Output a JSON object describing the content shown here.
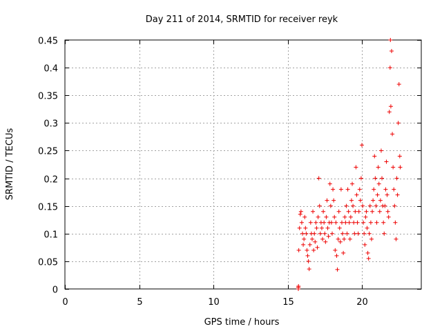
{
  "chart_data": {
    "type": "scatter",
    "title": "Day 211 of 2014, SRMTID for receiver reyk",
    "xlabel": "GPS time / hours",
    "ylabel": "SRMTID / TECUs",
    "xlim": [
      0,
      24
    ],
    "ylim": [
      0,
      0.45
    ],
    "x_ticks": [
      0,
      5,
      10,
      15,
      20
    ],
    "x_tick_labels": [
      "0",
      "5",
      "10",
      "15",
      "20"
    ],
    "y_ticks": [
      0,
      0.05,
      0.1,
      0.15,
      0.2,
      0.25,
      0.3,
      0.35,
      0.4,
      0.45
    ],
    "y_tick_labels": [
      "0",
      "0.05",
      "0.1",
      "0.15",
      "0.2",
      "0.25",
      "0.3",
      "0.35",
      "0.4",
      "0.45"
    ],
    "grid": true,
    "marker": "plus",
    "series": [
      {
        "name": "SRMTID",
        "color": "#ee0000",
        "points": [
          [
            15.72,
            0.0
          ],
          [
            15.72,
            0.003
          ],
          [
            15.73,
            0.005
          ],
          [
            15.75,
            0.07
          ],
          [
            15.8,
            0.11
          ],
          [
            15.85,
            0.135
          ],
          [
            15.9,
            0.14
          ],
          [
            15.95,
            0.12
          ],
          [
            16.0,
            0.1
          ],
          [
            16.05,
            0.08
          ],
          [
            16.1,
            0.09
          ],
          [
            16.15,
            0.13
          ],
          [
            16.2,
            0.11
          ],
          [
            16.25,
            0.1
          ],
          [
            16.3,
            0.07
          ],
          [
            16.35,
            0.06
          ],
          [
            16.4,
            0.05
          ],
          [
            16.45,
            0.036
          ],
          [
            16.5,
            0.08
          ],
          [
            16.55,
            0.12
          ],
          [
            16.6,
            0.1
          ],
          [
            16.65,
            0.09
          ],
          [
            16.7,
            0.14
          ],
          [
            16.75,
            0.07
          ],
          [
            16.8,
            0.1
          ],
          [
            16.85,
            0.085
          ],
          [
            16.9,
            0.12
          ],
          [
            16.95,
            0.11
          ],
          [
            17.0,
            0.075
          ],
          [
            17.05,
            0.13
          ],
          [
            17.1,
            0.2
          ],
          [
            17.15,
            0.15
          ],
          [
            17.2,
            0.1
          ],
          [
            17.25,
            0.12
          ],
          [
            17.3,
            0.11
          ],
          [
            17.35,
            0.09
          ],
          [
            17.4,
            0.14
          ],
          [
            17.45,
            0.12
          ],
          [
            17.5,
            0.1
          ],
          [
            17.55,
            0.085
          ],
          [
            17.6,
            0.13
          ],
          [
            17.65,
            0.16
          ],
          [
            17.7,
            0.11
          ],
          [
            17.75,
            0.095
          ],
          [
            17.8,
            0.12
          ],
          [
            17.85,
            0.19
          ],
          [
            17.9,
            0.15
          ],
          [
            17.95,
            0.12
          ],
          [
            18.0,
            0.1
          ],
          [
            18.05,
            0.18
          ],
          [
            18.1,
            0.16
          ],
          [
            18.15,
            0.13
          ],
          [
            18.2,
            0.07
          ],
          [
            18.25,
            0.12
          ],
          [
            18.3,
            0.06
          ],
          [
            18.35,
            0.035
          ],
          [
            18.4,
            0.09
          ],
          [
            18.45,
            0.14
          ],
          [
            18.5,
            0.11
          ],
          [
            18.55,
            0.085
          ],
          [
            18.6,
            0.18
          ],
          [
            18.65,
            0.12
          ],
          [
            18.7,
            0.1
          ],
          [
            18.75,
            0.065
          ],
          [
            18.8,
            0.09
          ],
          [
            18.85,
            0.13
          ],
          [
            18.9,
            0.12
          ],
          [
            18.95,
            0.15
          ],
          [
            19.0,
            0.1
          ],
          [
            19.05,
            0.18
          ],
          [
            19.1,
            0.14
          ],
          [
            19.15,
            0.12
          ],
          [
            19.2,
            0.09
          ],
          [
            19.25,
            0.13
          ],
          [
            19.3,
            0.16
          ],
          [
            19.35,
            0.19
          ],
          [
            19.4,
            0.15
          ],
          [
            19.45,
            0.12
          ],
          [
            19.5,
            0.1
          ],
          [
            19.55,
            0.14
          ],
          [
            19.6,
            0.22
          ],
          [
            19.65,
            0.17
          ],
          [
            19.7,
            0.12
          ],
          [
            19.75,
            0.1
          ],
          [
            19.8,
            0.14
          ],
          [
            19.85,
            0.18
          ],
          [
            19.9,
            0.16
          ],
          [
            19.95,
            0.2
          ],
          [
            20.0,
            0.26
          ],
          [
            20.05,
            0.15
          ],
          [
            20.1,
            0.12
          ],
          [
            20.15,
            0.1
          ],
          [
            20.2,
            0.08
          ],
          [
            20.25,
            0.13
          ],
          [
            20.3,
            0.14
          ],
          [
            20.35,
            0.11
          ],
          [
            20.4,
            0.065
          ],
          [
            20.45,
            0.055
          ],
          [
            20.5,
            0.1
          ],
          [
            20.55,
            0.15
          ],
          [
            20.6,
            0.12
          ],
          [
            20.65,
            0.09
          ],
          [
            20.7,
            0.14
          ],
          [
            20.75,
            0.16
          ],
          [
            20.8,
            0.18
          ],
          [
            20.85,
            0.24
          ],
          [
            20.9,
            0.2
          ],
          [
            20.95,
            0.15
          ],
          [
            21.0,
            0.12
          ],
          [
            21.05,
            0.17
          ],
          [
            21.1,
            0.22
          ],
          [
            21.15,
            0.19
          ],
          [
            21.2,
            0.14
          ],
          [
            21.25,
            0.16
          ],
          [
            21.3,
            0.25
          ],
          [
            21.35,
            0.2
          ],
          [
            21.4,
            0.15
          ],
          [
            21.45,
            0.12
          ],
          [
            21.5,
            0.1
          ],
          [
            21.55,
            0.15
          ],
          [
            21.6,
            0.18
          ],
          [
            21.65,
            0.23
          ],
          [
            21.7,
            0.17
          ],
          [
            21.75,
            0.14
          ],
          [
            21.8,
            0.13
          ],
          [
            21.85,
            0.32
          ],
          [
            21.9,
            0.4
          ],
          [
            21.92,
            0.45
          ],
          [
            21.95,
            0.33
          ],
          [
            22.0,
            0.43
          ],
          [
            22.05,
            0.28
          ],
          [
            22.1,
            0.22
          ],
          [
            22.15,
            0.18
          ],
          [
            22.2,
            0.15
          ],
          [
            22.25,
            0.12
          ],
          [
            22.3,
            0.09
          ],
          [
            22.35,
            0.2
          ],
          [
            22.4,
            0.17
          ],
          [
            22.45,
            0.3
          ],
          [
            22.5,
            0.37
          ],
          [
            22.55,
            0.24
          ],
          [
            22.58,
            0.22
          ]
        ]
      }
    ]
  }
}
